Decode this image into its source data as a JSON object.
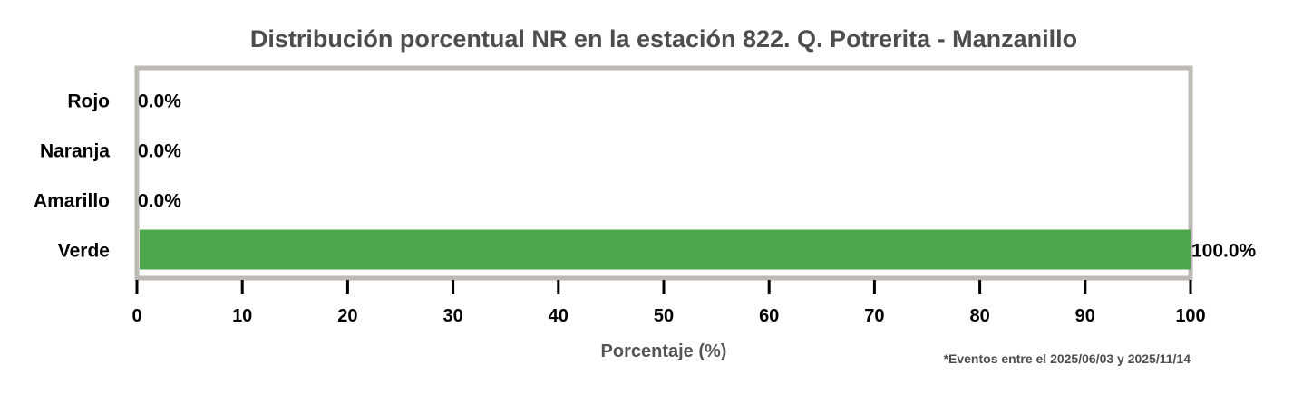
{
  "chart_data": {
    "type": "bar",
    "orientation": "horizontal",
    "title": "Distribución porcentual NR en la estación 822. Q. Potrerita - Manzanillo",
    "xlabel": "Porcentaje (%)",
    "ylabel": "",
    "xlim": [
      0,
      100
    ],
    "xticks": [
      0,
      10,
      20,
      30,
      40,
      50,
      60,
      70,
      80,
      90,
      100
    ],
    "grid": false,
    "categories": [
      "Rojo",
      "Naranja",
      "Amarillo",
      "Verde"
    ],
    "values": [
      0.0,
      0.0,
      0.0,
      100.0
    ],
    "value_labels": [
      "0.0%",
      "0.0%",
      "0.0%",
      "100.0%"
    ],
    "colors": [
      "#e53935",
      "#fb8c00",
      "#fdd835",
      "#4ca64c"
    ],
    "frame_color": "#bdb9b4"
  },
  "footnote": "*Eventos entre el 2025/06/03 y 2025/11/14"
}
